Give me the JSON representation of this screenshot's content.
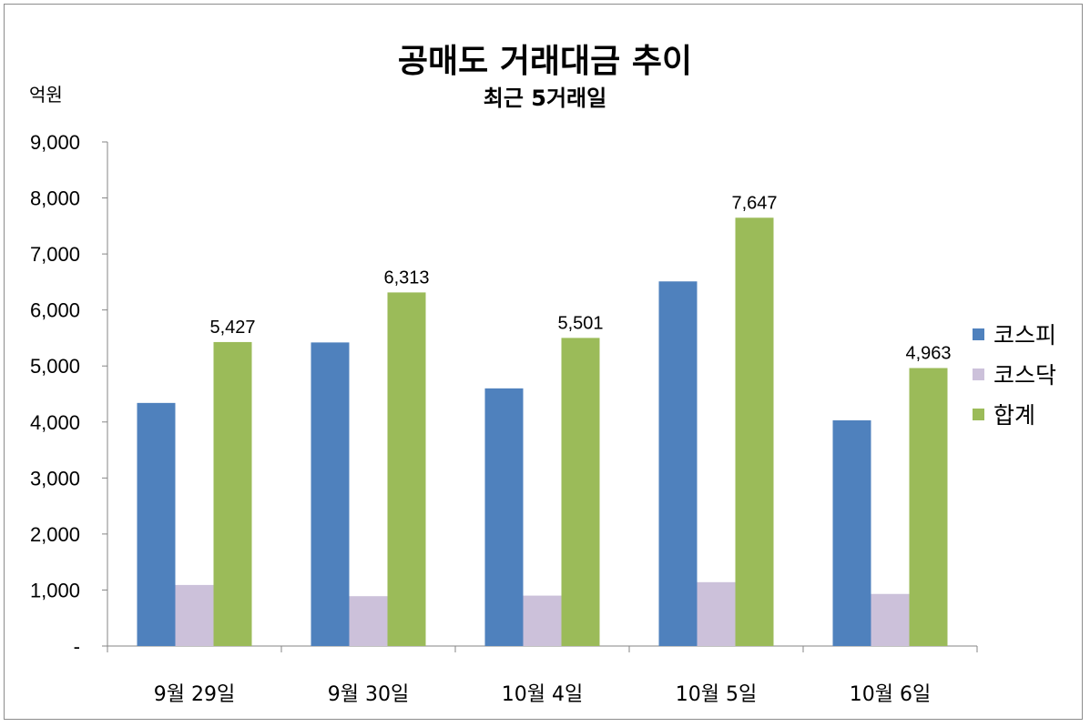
{
  "chart_data": {
    "type": "bar",
    "title": "공매도 거래대금 추이",
    "subtitle": "최근 5거래일",
    "ylabel": "억원",
    "ylim": [
      0,
      9000
    ],
    "yticks": [
      0,
      1000,
      2000,
      3000,
      4000,
      5000,
      6000,
      7000,
      8000,
      9000
    ],
    "ytick_labels": [
      "-",
      "1,000",
      "2,000",
      "3,000",
      "4,000",
      "5,000",
      "6,000",
      "7,000",
      "8,000",
      "9,000"
    ],
    "categories": [
      "9월 29일",
      "9월 30일",
      "10월 4일",
      "10월 5일",
      "10월 6일"
    ],
    "series": [
      {
        "name": "코스피",
        "color": "#4f81bd",
        "values": [
          4340,
          5420,
          4600,
          6510,
          4030
        ]
      },
      {
        "name": "코스닥",
        "color": "#ccc1da",
        "values": [
          1090,
          890,
          900,
          1140,
          930
        ]
      },
      {
        "name": "합계",
        "color": "#9bbb59",
        "values": [
          5427,
          6313,
          5501,
          7647,
          4963
        ]
      }
    ],
    "data_labels": {
      "series": "합계",
      "texts": [
        "5,427",
        "6,313",
        "5,501",
        "7,647",
        "4,963"
      ]
    },
    "legend_position": "right",
    "grid": false
  }
}
